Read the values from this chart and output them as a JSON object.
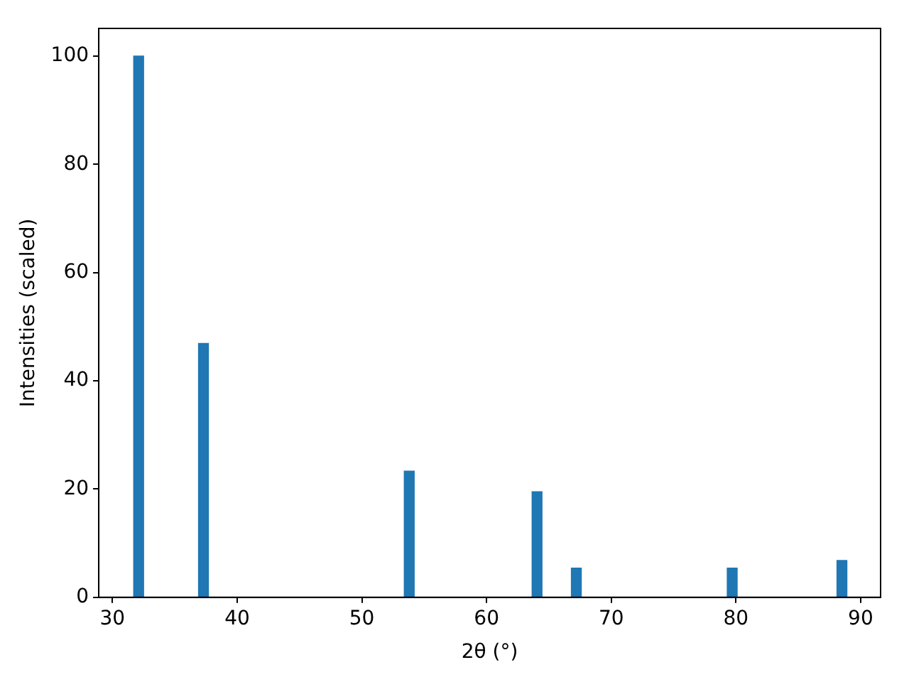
{
  "chart_data": {
    "type": "bar",
    "xlabel": "2θ (°)",
    "ylabel": "Intensities (scaled)",
    "x": [
      32.1,
      37.3,
      53.8,
      64.05,
      67.2,
      79.7,
      88.5
    ],
    "values": [
      100,
      46.9,
      23.3,
      19.5,
      5.4,
      5.4,
      6.8
    ],
    "color": "#1f77b4",
    "xlim": [
      28.9,
      91.6
    ],
    "xticks": [
      30,
      40,
      50,
      60,
      70,
      80,
      90
    ],
    "ylim": [
      0,
      105.1
    ],
    "yticks": [
      0,
      20,
      40,
      60,
      80,
      100
    ],
    "grid": false,
    "legend": false
  }
}
